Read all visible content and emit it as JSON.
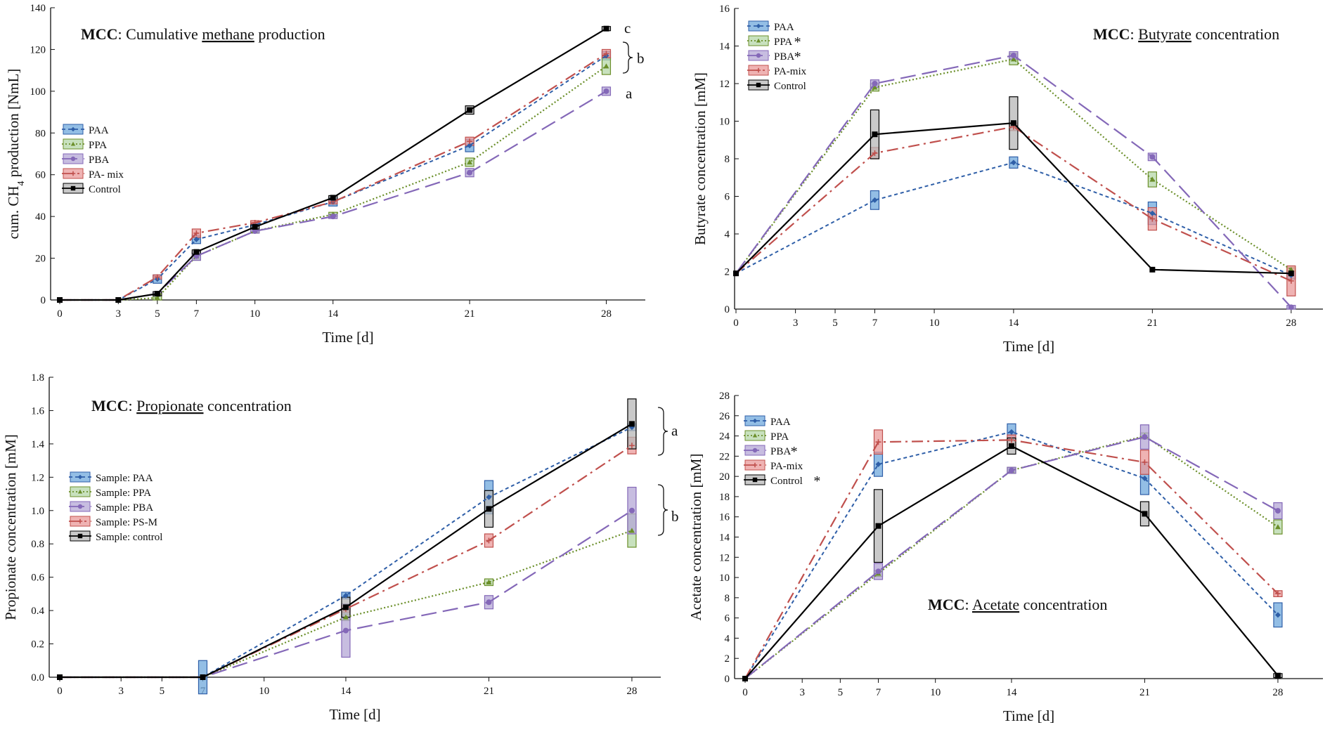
{
  "colors": {
    "PAA": "#2f5fa8",
    "PAA_fill": "#6fa8dc",
    "PPA": "#6b8f2a",
    "PPA_fill": "#b6d7a8",
    "PBA": "#8468b8",
    "PBA_fill": "#b4a7d6",
    "PA": "#c0504d",
    "PA_fill": "#ea9999",
    "Control": "#000000",
    "Control_fill": "#b7b7b7"
  },
  "chart_data": [
    {
      "id": "methane",
      "type": "line",
      "title_bold": "MCC",
      "title_rest": ": Cumulative ",
      "title_underlined": "methane",
      "title_tail": " production",
      "xlabel": "Time [d]",
      "ylabel_main": "cum. CH",
      "ylabel_sub": "4",
      "ylabel_tail": " production [NmL]",
      "xlim": [
        0,
        30
      ],
      "ylim": [
        0,
        140
      ],
      "xticks": [
        0,
        3,
        5,
        7,
        10,
        14,
        21,
        28
      ],
      "yticks": [
        0,
        20,
        40,
        60,
        80,
        100,
        120,
        140
      ],
      "ytick_labels": [
        "0",
        "20",
        "40",
        "60",
        "80",
        "100",
        "120",
        "140"
      ],
      "legend": [
        "PAA",
        "PPA",
        "PBA",
        "PA- mix",
        "Control"
      ],
      "annotations": [
        "c",
        "b",
        "a"
      ],
      "series": [
        {
          "name": "PAA",
          "key": "PAA",
          "x": [
            0,
            3,
            5,
            7,
            10,
            14,
            21,
            28
          ],
          "y": [
            0,
            0,
            10,
            29,
            36,
            47,
            74,
            117
          ],
          "err": [
            0,
            0,
            2,
            2,
            1,
            2,
            3,
            2
          ]
        },
        {
          "name": "PPA",
          "key": "PPA",
          "x": [
            0,
            3,
            5,
            7,
            10,
            14,
            21,
            28
          ],
          "y": [
            0,
            0,
            1,
            21,
            33,
            41,
            66,
            112
          ],
          "err": [
            0,
            0,
            1,
            2,
            1,
            1,
            2,
            4
          ]
        },
        {
          "name": "PBA",
          "key": "PBA",
          "x": [
            0,
            3,
            5,
            7,
            10,
            14,
            21,
            28
          ],
          "y": [
            0,
            0,
            3,
            21,
            33,
            40,
            61,
            100
          ],
          "err": [
            0,
            0,
            1,
            2,
            1,
            1,
            2,
            2
          ]
        },
        {
          "name": "PA- mix",
          "key": "PA",
          "x": [
            0,
            3,
            5,
            7,
            10,
            14,
            21,
            28
          ],
          "y": [
            0,
            0,
            11,
            32,
            37,
            47,
            76,
            118
          ],
          "err": [
            0,
            0,
            1,
            2,
            1,
            1,
            2,
            2
          ]
        },
        {
          "name": "Control",
          "key": "Control",
          "x": [
            0,
            3,
            5,
            7,
            10,
            14,
            21,
            28
          ],
          "y": [
            0,
            0,
            3,
            23,
            35,
            49,
            91,
            130
          ],
          "err": [
            0,
            0,
            1,
            1,
            1,
            1,
            2,
            1
          ]
        }
      ]
    },
    {
      "id": "butyrate",
      "type": "line",
      "title_bold": "MCC",
      "title_rest": ": ",
      "title_underlined": "Butyrate",
      "title_tail": " concentration",
      "xlabel": "Time [d]",
      "ylabel": "Butyrate concentration [mM]",
      "xlim": [
        0,
        29
      ],
      "ylim": [
        0,
        16
      ],
      "xticks": [
        0,
        3,
        5,
        7,
        10,
        14,
        21,
        28
      ],
      "yticks": [
        0,
        2,
        4,
        6,
        8,
        10,
        12,
        14,
        16
      ],
      "ytick_labels": [
        "0",
        "2",
        "4",
        "6",
        "8",
        "10",
        "12",
        "14",
        "16"
      ],
      "legend": [
        "PAA",
        "PPA",
        "PBA",
        "PA-mix",
        "Control"
      ],
      "legend_star": [
        "PPA",
        "PBA"
      ],
      "series": [
        {
          "name": "PAA",
          "key": "PAA",
          "x": [
            0,
            7,
            14,
            21,
            28
          ],
          "y": [
            1.9,
            5.8,
            7.8,
            5.1,
            1.8
          ],
          "err": [
            0,
            0.5,
            0.3,
            0.6,
            0.2
          ]
        },
        {
          "name": "PPA",
          "key": "PPA",
          "x": [
            0,
            7,
            14,
            21,
            28
          ],
          "y": [
            1.9,
            11.8,
            13.3,
            6.9,
            2.1
          ],
          "err": [
            0,
            0.2,
            0.3,
            0.4,
            0.1
          ]
        },
        {
          "name": "PBA",
          "key": "PBA",
          "x": [
            0,
            7,
            14,
            21,
            28
          ],
          "y": [
            1.9,
            12.0,
            13.5,
            8.1,
            0.1
          ],
          "err": [
            0,
            0.2,
            0.2,
            0.2,
            0.1
          ]
        },
        {
          "name": "PA-mix",
          "key": "PA",
          "x": [
            0,
            7,
            14,
            21,
            28
          ],
          "y": [
            1.9,
            8.3,
            9.7,
            4.8,
            1.5
          ],
          "err": [
            0,
            0.3,
            0.2,
            0.6,
            0.8
          ]
        },
        {
          "name": "Control",
          "key": "Control",
          "x": [
            0,
            7,
            14,
            21,
            28
          ],
          "y": [
            1.9,
            9.3,
            9.9,
            2.1,
            1.9
          ],
          "err": [
            0,
            1.3,
            1.4,
            0,
            0
          ]
        }
      ]
    },
    {
      "id": "propionate",
      "type": "line",
      "title_bold": "MCC",
      "title_rest": ": ",
      "title_underlined": "Propionate",
      "title_tail": " concentration",
      "xlabel": "Time [d]",
      "ylabel": "Propionate concentration [mM]",
      "xlim": [
        0,
        29
      ],
      "ylim": [
        0,
        1.8
      ],
      "xticks": [
        0,
        3,
        5,
        7,
        10,
        14,
        21,
        28
      ],
      "yticks": [
        0,
        0.2,
        0.4,
        0.6,
        0.8,
        1.0,
        1.2,
        1.4,
        1.6,
        1.8
      ],
      "ytick_labels": [
        "0.0",
        "0.2",
        "0.4",
        "0.6",
        "0.8",
        "1.0",
        "1.2",
        "1.4",
        "1.6",
        "1.8"
      ],
      "legend": [
        "Sample: PAA",
        "Sample: PPA",
        "Sample: PBA",
        "Sample: PS-M",
        "Sample: control"
      ],
      "annotations": [
        "a",
        "b"
      ],
      "series": [
        {
          "name": "Sample: PAA",
          "key": "PAA",
          "x": [
            0,
            7,
            14,
            21,
            28
          ],
          "y": [
            0,
            0,
            0.49,
            1.08,
            1.5
          ],
          "err": [
            0,
            0.1,
            0.02,
            0.1,
            0.02
          ]
        },
        {
          "name": "Sample: PPA",
          "key": "PPA",
          "x": [
            0,
            7,
            14,
            21,
            28
          ],
          "y": [
            0,
            0,
            0.36,
            0.57,
            0.88
          ],
          "err": [
            0,
            0,
            0.02,
            0.02,
            0.1
          ]
        },
        {
          "name": "Sample: PBA",
          "key": "PBA",
          "x": [
            0,
            7,
            14,
            21,
            28
          ],
          "y": [
            0,
            0,
            0.28,
            0.45,
            1.0
          ],
          "err": [
            0,
            0,
            0.16,
            0.04,
            0.14
          ]
        },
        {
          "name": "Sample: PS-M",
          "key": "PA",
          "x": [
            0,
            7,
            14,
            21,
            28
          ],
          "y": [
            0,
            0,
            0.41,
            0.82,
            1.39
          ],
          "err": [
            0,
            0,
            0.02,
            0.04,
            0.05
          ]
        },
        {
          "name": "Sample: control",
          "key": "Control",
          "x": [
            0,
            7,
            14,
            21,
            28
          ],
          "y": [
            0,
            0,
            0.42,
            1.01,
            1.52
          ],
          "err": [
            0,
            0,
            0.06,
            0.11,
            0.15
          ]
        }
      ]
    },
    {
      "id": "acetate",
      "type": "line",
      "title_bold": "MCC",
      "title_rest": ": ",
      "title_underlined": "Acetate",
      "title_tail": " concentration",
      "xlabel": "Time [d]",
      "ylabel": "Acetate concentration [mM]",
      "xlim": [
        0,
        29
      ],
      "ylim": [
        0,
        28
      ],
      "xticks": [
        0,
        3,
        5,
        7,
        10,
        14,
        21,
        28
      ],
      "yticks": [
        0,
        2,
        4,
        6,
        8,
        10,
        12,
        14,
        16,
        18,
        20,
        22,
        24,
        26,
        28
      ],
      "ytick_labels": [
        "0",
        "2",
        "4",
        "6",
        "8",
        "10",
        "12",
        "14",
        "16",
        "18",
        "20",
        "22",
        "24",
        "26",
        "28"
      ],
      "legend": [
        "PAA",
        "PPA",
        "PBA",
        "PA-mix",
        "Control"
      ],
      "legend_star": [
        "PBA",
        "Control"
      ],
      "series": [
        {
          "name": "PAA",
          "key": "PAA",
          "x": [
            0,
            7,
            14,
            21,
            28
          ],
          "y": [
            0,
            21.2,
            24.4,
            19.8,
            6.3
          ],
          "err": [
            0,
            1.2,
            0.8,
            1.6,
            1.2
          ]
        },
        {
          "name": "PPA",
          "key": "PPA",
          "x": [
            0,
            7,
            14,
            21,
            28
          ],
          "y": [
            0,
            10.4,
            20.6,
            24.0,
            15.0
          ],
          "err": [
            0,
            0.3,
            0.3,
            0.3,
            0.7
          ]
        },
        {
          "name": "PBA",
          "key": "PBA",
          "x": [
            0,
            7,
            14,
            21,
            28
          ],
          "y": [
            0,
            10.6,
            20.6,
            23.9,
            16.6
          ],
          "err": [
            0,
            0.8,
            0.3,
            1.2,
            0.8
          ]
        },
        {
          "name": "PA-mix",
          "key": "PA",
          "x": [
            0,
            7,
            14,
            21,
            28
          ],
          "y": [
            0,
            23.4,
            23.6,
            21.4,
            8.4
          ],
          "err": [
            0,
            1.2,
            0.5,
            1.2,
            0.3
          ]
        },
        {
          "name": "Control",
          "key": "Control",
          "x": [
            0,
            7,
            14,
            21,
            28
          ],
          "y": [
            0,
            15.1,
            23.0,
            16.3,
            0.3
          ],
          "err": [
            0,
            3.6,
            0.8,
            1.2,
            0.2
          ]
        }
      ]
    }
  ]
}
